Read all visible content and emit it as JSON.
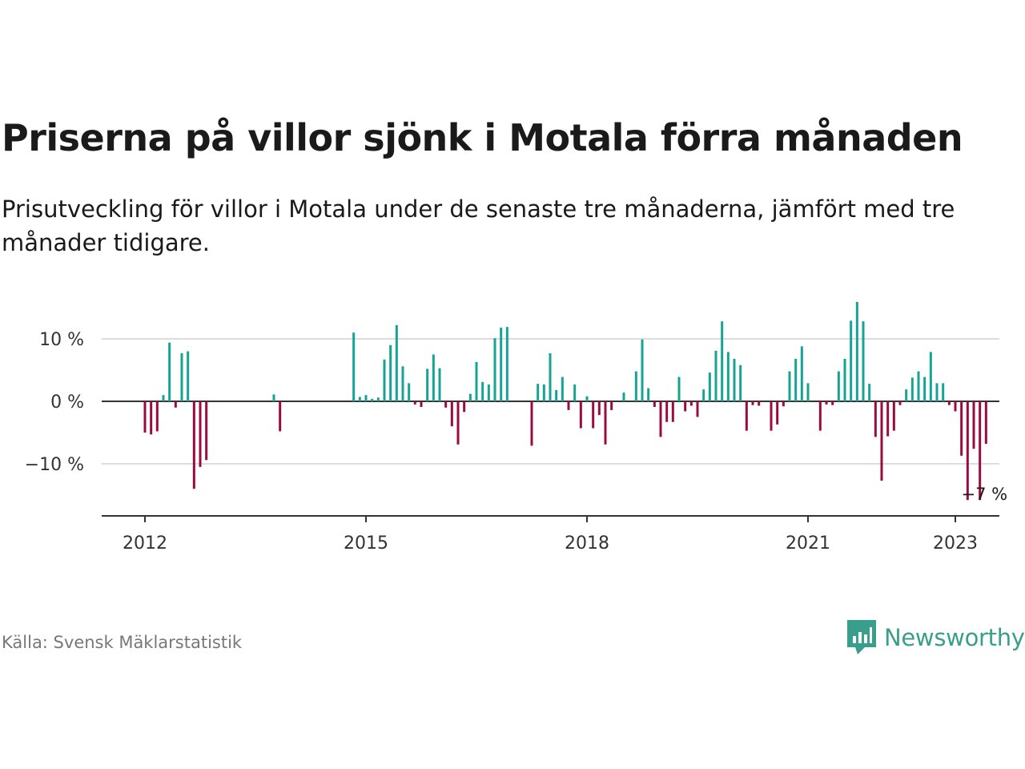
{
  "title": "Priserna på villor sjönk i Motala förra månaden",
  "subtitle": "Prisutveckling för villor i Motala under de senaste tre månaderna, jämfört med tre månader tidigare.",
  "source": "Källa: Svensk Mäklarstatistik",
  "brand": {
    "name": "Newsworthy",
    "icon": "newsworthy-logo-icon"
  },
  "colors": {
    "positive": "#16a394",
    "negative": "#9c0b40",
    "grid": "#dddddd",
    "axis": "#333333",
    "text": "#333333"
  },
  "chart_data": {
    "type": "bar",
    "x_start": "2012-01",
    "interval": "month",
    "ylim": [
      -18,
      16
    ],
    "y_ticks": [
      10,
      0,
      -10
    ],
    "y_tick_labels": [
      "10 %",
      "0 %",
      "−10 %"
    ],
    "x_ticks": [
      "2012",
      "2015",
      "2018",
      "2021",
      "2023"
    ],
    "values": [
      -5,
      -5.3,
      -4.8,
      1,
      9.4,
      -1,
      7.7,
      8,
      -14,
      -10.5,
      -9.4,
      null,
      null,
      null,
      null,
      null,
      null,
      null,
      null,
      null,
      null,
      1.1,
      -4.8,
      null,
      null,
      null,
      null,
      null,
      null,
      null,
      null,
      null,
      null,
      null,
      11,
      0.7,
      1,
      0.4,
      0.6,
      6.7,
      9,
      12.2,
      5.6,
      2.9,
      -0.5,
      -0.9,
      5.2,
      7.5,
      5.3,
      -1,
      -4,
      -6.9,
      -1.7,
      1.2,
      6.3,
      3.1,
      2.7,
      10.1,
      11.8,
      11.9,
      null,
      null,
      null,
      -7.1,
      2.8,
      2.7,
      7.7,
      1.8,
      3.9,
      -1.4,
      2.7,
      -4.3,
      0.8,
      -4.3,
      -2.2,
      -6.9,
      -1.4,
      null,
      1.4,
      null,
      4.8,
      9.9,
      2.1,
      -0.9,
      -5.7,
      -3.3,
      -3.3,
      3.9,
      -1.6,
      -0.7,
      -2.5,
      1.9,
      4.6,
      8.1,
      12.8,
      7.9,
      6.8,
      5.8,
      -4.7,
      -0.6,
      -0.7,
      null,
      -4.7,
      -3.7,
      -0.8,
      4.8,
      6.8,
      8.8,
      2.9,
      null,
      -4.7,
      -0.5,
      -0.6,
      4.8,
      6.8,
      12.9,
      15.9,
      12.8,
      2.8,
      -5.7,
      -12.7,
      -5.6,
      -4.7,
      -0.6,
      1.9,
      3.8,
      4.8,
      3.9,
      7.9,
      2.9,
      2.9,
      -0.6,
      -1.6,
      -8.7,
      -15.8,
      -7.6,
      -15.8,
      -6.8
    ],
    "last_label": "−7 %"
  }
}
